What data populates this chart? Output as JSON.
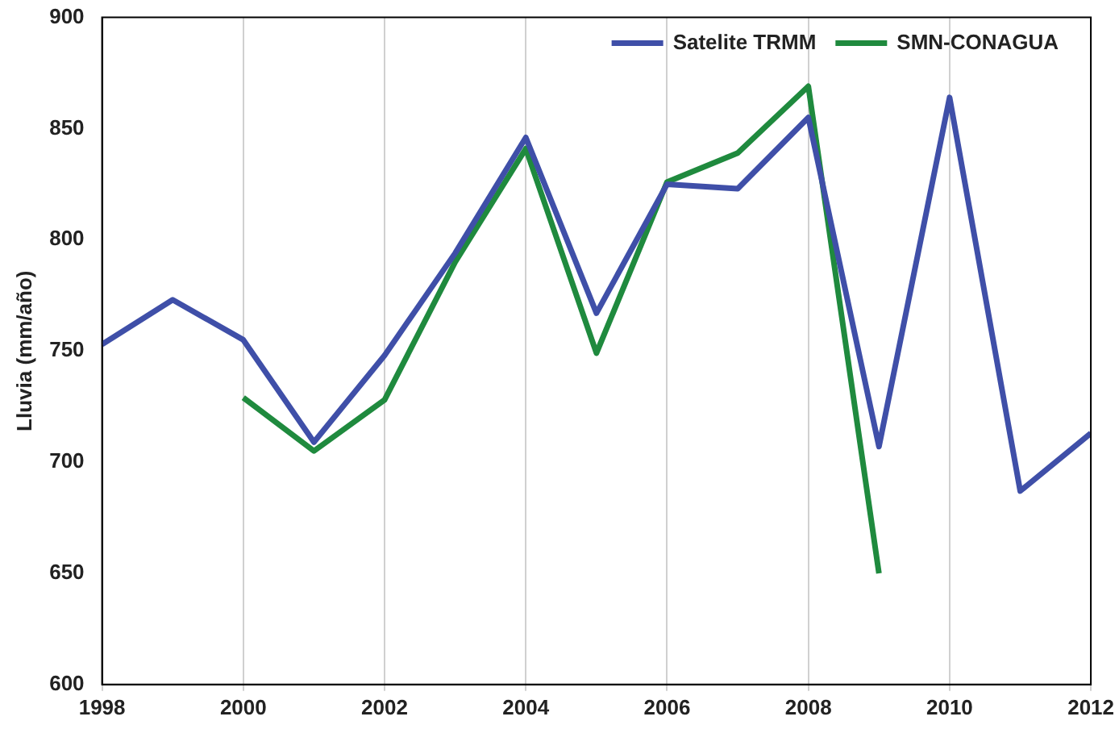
{
  "chart_data": {
    "type": "line",
    "ylabel": "Lluvia (mm/año)",
    "x": [
      1998,
      1999,
      2000,
      2001,
      2002,
      2003,
      2004,
      2005,
      2006,
      2007,
      2008,
      2009,
      2010,
      2011,
      2012
    ],
    "series": [
      {
        "name": "Satelite TRMM",
        "color": "#3f4fa8",
        "values": [
          753,
          773,
          755,
          709,
          748,
          794,
          846,
          767,
          825,
          823,
          855,
          707,
          864,
          687,
          713
        ]
      },
      {
        "name": "SMN-CONAGUA",
        "color": "#1f8a3e",
        "values": [
          null,
          null,
          729,
          705,
          728,
          790,
          841,
          749,
          826,
          839,
          869,
          650,
          null,
          null,
          null
        ]
      }
    ],
    "xlim": [
      1998,
      2012
    ],
    "xticks": [
      1998,
      2000,
      2002,
      2004,
      2006,
      2008,
      2010,
      2012
    ],
    "ylim": [
      600,
      900
    ],
    "yticks": [
      600,
      650,
      700,
      750,
      800,
      850,
      900
    ],
    "grid": "x",
    "legend": "top right",
    "marker": "none",
    "line_style": "solid"
  }
}
